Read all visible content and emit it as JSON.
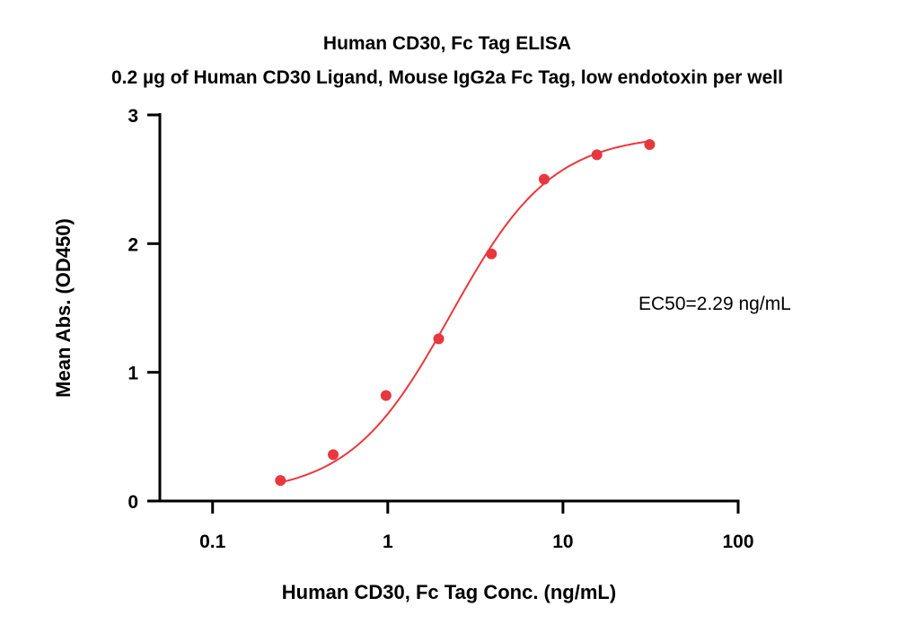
{
  "chart_data": {
    "type": "scatter",
    "title": "Human CD30, Fc Tag ELISA",
    "subtitle": "0.2 µg of Human CD30 Ligand, Mouse IgG2a Fc Tag, low endotoxin per well",
    "xlabel": "Human CD30, Fc Tag Conc. (ng/mL)",
    "ylabel": "Mean Abs. (OD450)",
    "x_scale": "log",
    "xlim": [
      0.05,
      100
    ],
    "ylim": [
      0,
      3
    ],
    "x_ticks": [
      {
        "value": 0.1,
        "label": "0.1"
      },
      {
        "value": 1,
        "label": "1"
      },
      {
        "value": 10,
        "label": "10"
      },
      {
        "value": 100,
        "label": "100"
      }
    ],
    "y_ticks": [
      {
        "value": 0,
        "label": "0"
      },
      {
        "value": 1,
        "label": "1"
      },
      {
        "value": 2,
        "label": "2"
      },
      {
        "value": 3,
        "label": "3"
      }
    ],
    "grid": false,
    "legend": "none",
    "series": [
      {
        "color": "#e8383d",
        "x": [
          0.244,
          0.488,
          0.977,
          1.953,
          3.906,
          7.813,
          15.625,
          31.25
        ],
        "y": [
          0.16,
          0.36,
          0.82,
          1.26,
          1.92,
          2.5,
          2.69,
          2.77
        ]
      }
    ],
    "fit": {
      "model": "4PL",
      "color": "#e8383d",
      "bottom": 0.05,
      "top": 2.85,
      "ec50": 2.29,
      "hill": 1.5,
      "x_range": [
        0.244,
        31.25
      ]
    },
    "annotations": [
      {
        "text": "EC50=2.29 ng/mL"
      }
    ]
  }
}
